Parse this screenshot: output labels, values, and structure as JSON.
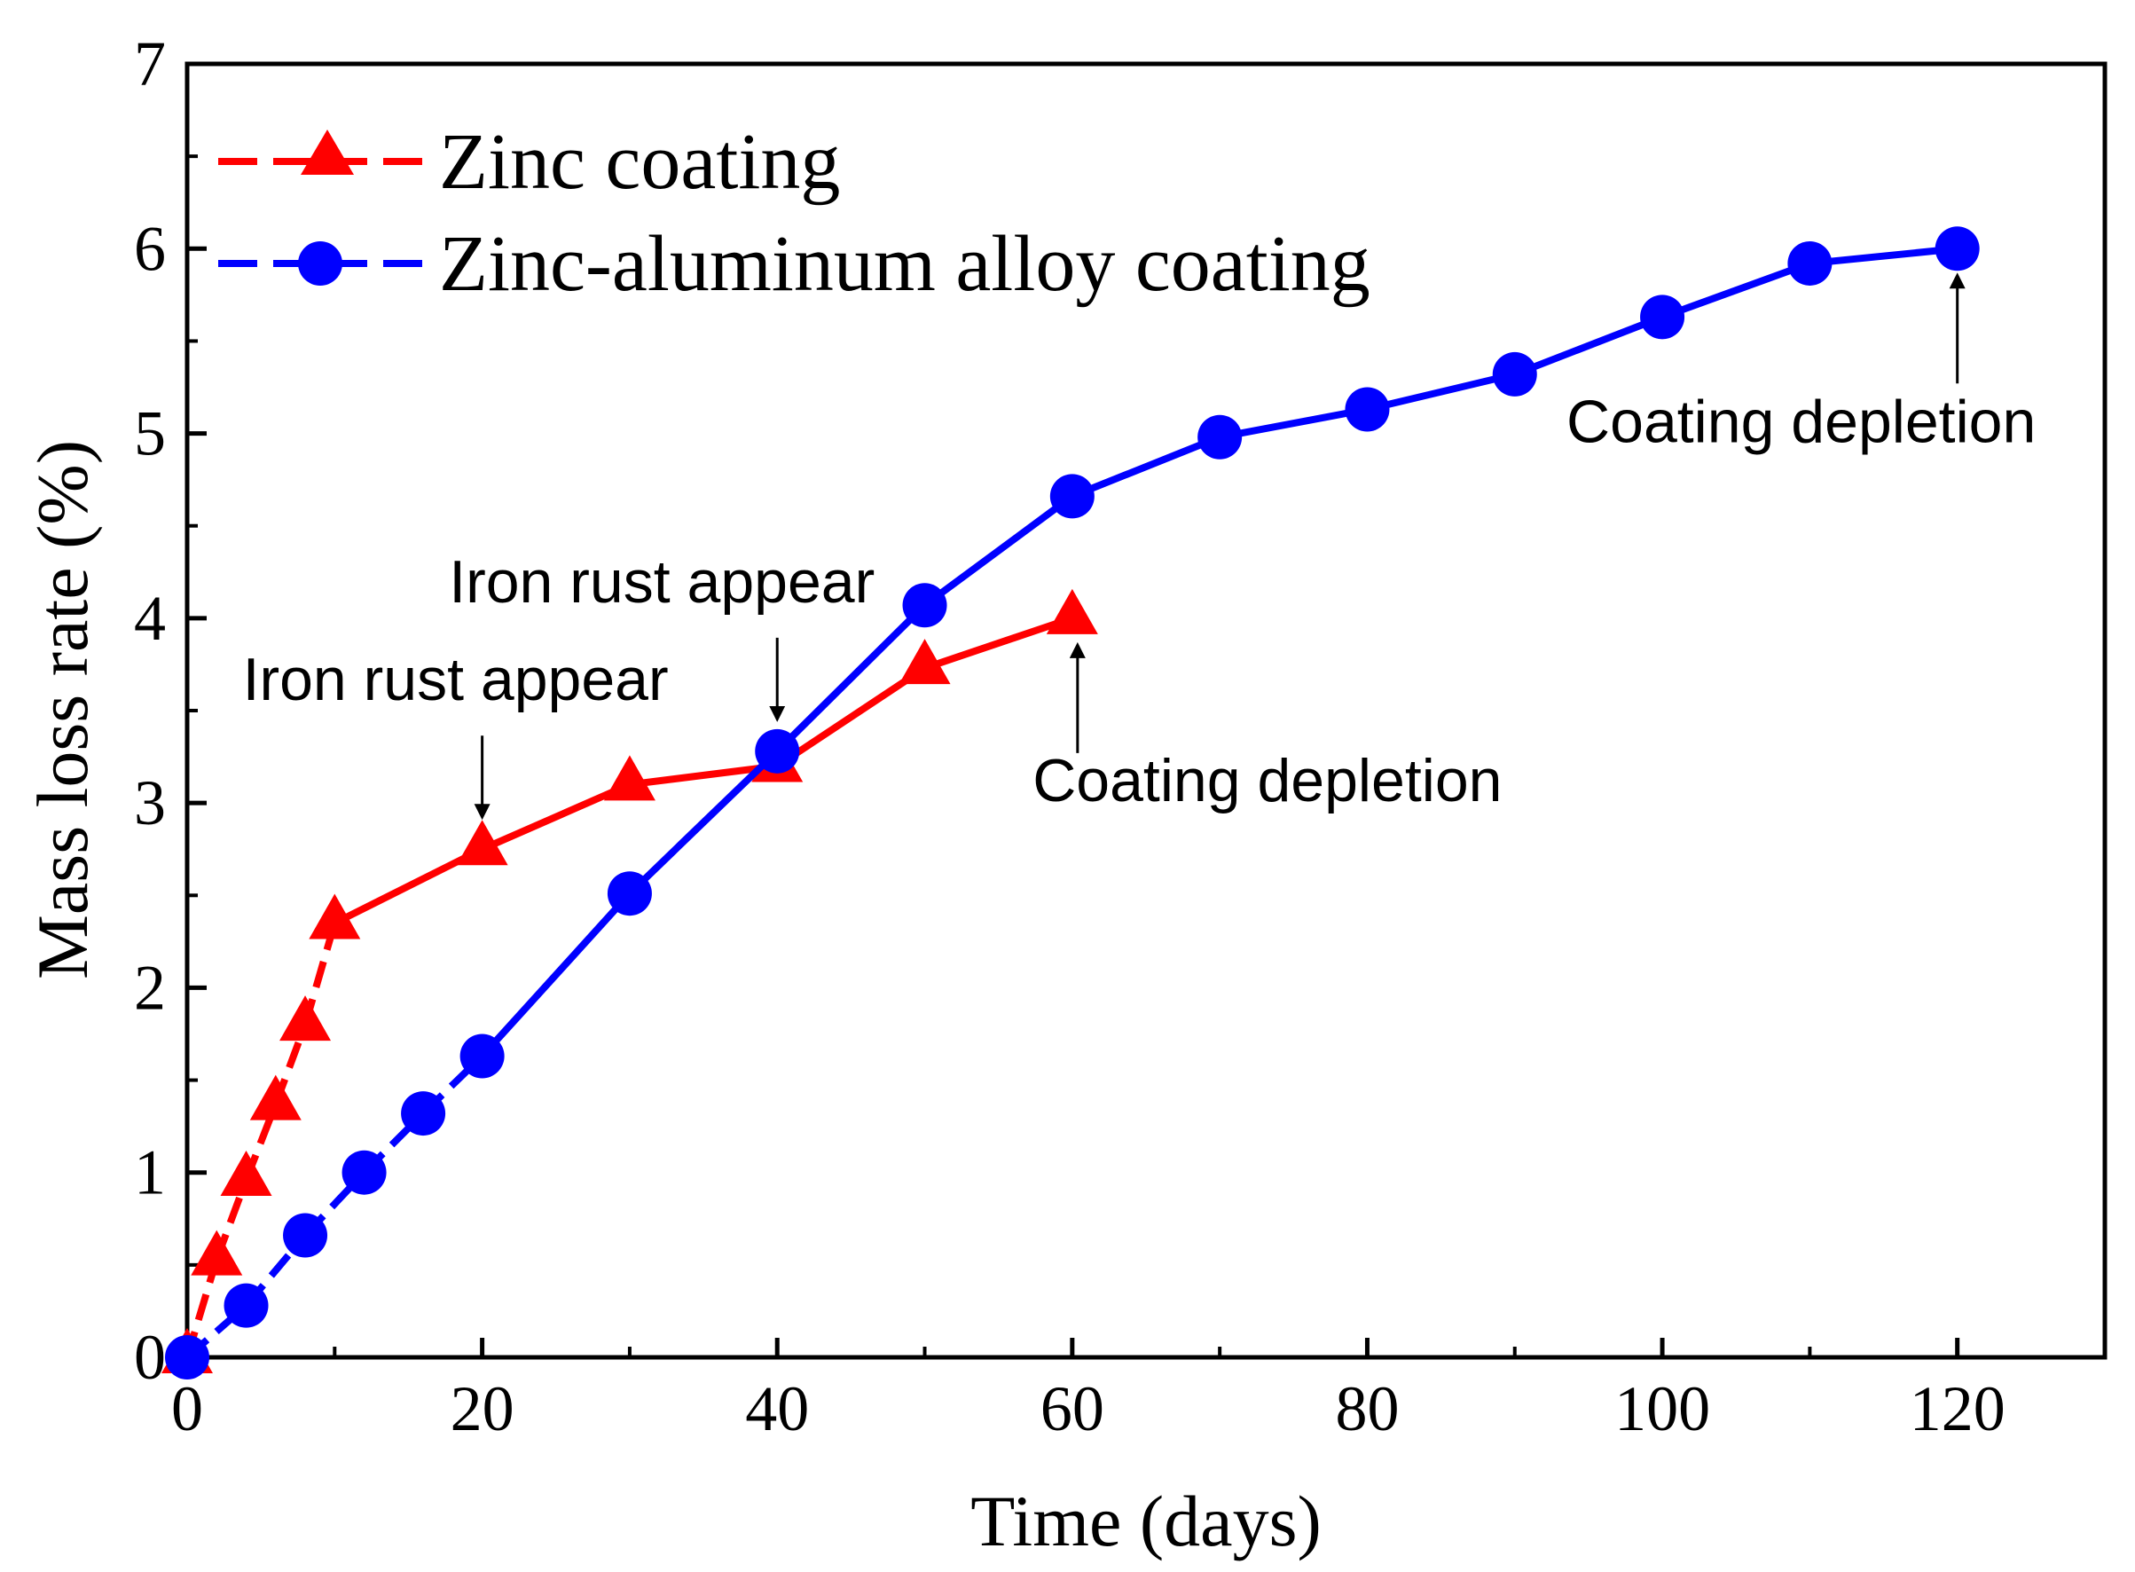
{
  "chart_data": {
    "type": "line",
    "title": "",
    "xlabel": "Time (days)",
    "ylabel": "Mass loss rate (%)",
    "xlim": [
      0,
      130
    ],
    "ylim": [
      0,
      7
    ],
    "xticks": [
      0,
      20,
      40,
      60,
      80,
      100,
      120
    ],
    "yticks": [
      0,
      1,
      2,
      3,
      4,
      5,
      6,
      7
    ],
    "legend_position": "top-left",
    "grid": false,
    "series": [
      {
        "name": "Zinc coating",
        "color": "#ff0000",
        "marker": "triangle",
        "points": [
          {
            "x": 0,
            "y": 0
          },
          {
            "x": 2,
            "y": 0.53
          },
          {
            "x": 4,
            "y": 0.96
          },
          {
            "x": 6,
            "y": 1.37
          },
          {
            "x": 8,
            "y": 1.8
          },
          {
            "x": 10,
            "y": 2.35
          },
          {
            "x": 20,
            "y": 2.75
          },
          {
            "x": 30,
            "y": 3.1
          },
          {
            "x": 40,
            "y": 3.2
          },
          {
            "x": 50,
            "y": 3.73
          },
          {
            "x": 60,
            "y": 4.0
          }
        ],
        "dashed_until_x": 10
      },
      {
        "name": "Zinc-aluminum alloy coating",
        "color": "#0000ff",
        "marker": "circle",
        "points": [
          {
            "x": 0,
            "y": 0
          },
          {
            "x": 4,
            "y": 0.28
          },
          {
            "x": 8,
            "y": 0.66
          },
          {
            "x": 12,
            "y": 1.0
          },
          {
            "x": 16,
            "y": 1.32
          },
          {
            "x": 20,
            "y": 1.63
          },
          {
            "x": 30,
            "y": 2.51
          },
          {
            "x": 40,
            "y": 3.28
          },
          {
            "x": 50,
            "y": 4.07
          },
          {
            "x": 60,
            "y": 4.66
          },
          {
            "x": 70,
            "y": 4.98
          },
          {
            "x": 80,
            "y": 5.13
          },
          {
            "x": 90,
            "y": 5.32
          },
          {
            "x": 100,
            "y": 5.63
          },
          {
            "x": 110,
            "y": 5.92
          },
          {
            "x": 120,
            "y": 6.0
          }
        ],
        "dashed_until_x": 20
      }
    ],
    "annotations": [
      {
        "text": "Iron rust appear",
        "x": 20,
        "y": 2.75,
        "arrow": "down"
      },
      {
        "text": "Iron rust appear",
        "x": 40,
        "y": 3.28,
        "arrow": "down"
      },
      {
        "text": "Coating depletion",
        "x": 60,
        "y": 4.0,
        "arrow": "up"
      },
      {
        "text": "Coating depletion",
        "x": 120,
        "y": 6.0,
        "arrow": "up"
      }
    ]
  }
}
